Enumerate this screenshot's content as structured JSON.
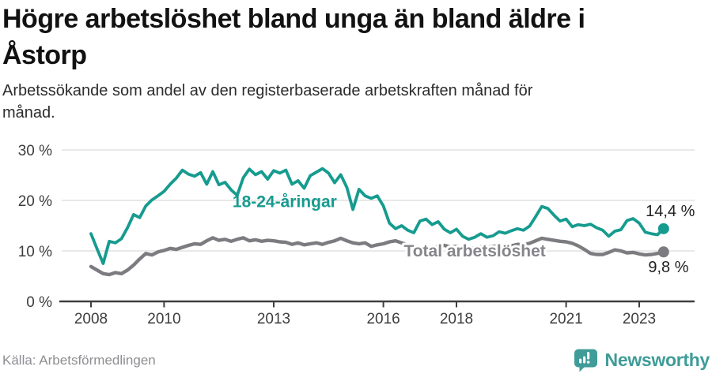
{
  "header": {
    "title_lines": [
      "Högre arbetslöshet bland unga än bland äldre i",
      "Åstorp"
    ],
    "subtitle_lines": [
      "Arbetssökande som andel av den registerbaserade arbetskraften månad för",
      "månad."
    ]
  },
  "footer": {
    "source": "Källa: Arbetsförmedlingen",
    "brand": "Newsworthy",
    "brand_color": "#3f9c98",
    "brand_icon": "bar-chart-speech-bubble"
  },
  "chart_data": {
    "type": "line",
    "title": "Högre arbetslöshet bland unga än bland äldre i Åstorp",
    "subtitle": "Arbetssökande som andel av den registerbaserade arbetskraften månad för månad.",
    "grid": "horizontal",
    "legend_position": "inline-labels",
    "sampling": "bimonthly estimates read from chart",
    "x_start": 2008.0,
    "x_step_years": 0.1666667,
    "xlim": [
      2007.1,
      2024.5
    ],
    "ylim": [
      0,
      31
    ],
    "x_ticks": [
      {
        "year": 2008,
        "label": "2008"
      },
      {
        "year": 2010,
        "label": "2010"
      },
      {
        "year": 2013,
        "label": "2013"
      },
      {
        "year": 2016,
        "label": "2016"
      },
      {
        "year": 2018,
        "label": "2018"
      },
      {
        "year": 2021,
        "label": "2021"
      },
      {
        "year": 2023,
        "label": "2023"
      }
    ],
    "y_ticks": [
      {
        "value": 0,
        "label": "0 %"
      },
      {
        "value": 10,
        "label": "10 %"
      },
      {
        "value": 20,
        "label": "20 %"
      },
      {
        "value": 30,
        "label": "30 %"
      }
    ],
    "series": [
      {
        "id": "youth",
        "name": "18-24-åringar",
        "color": "#169b8f",
        "width": 3.8,
        "end_value_label": "14,4 %",
        "values": [
          13.4,
          10.4,
          7.5,
          11.9,
          11.6,
          12.4,
          14.6,
          17.2,
          16.6,
          18.9,
          20.1,
          20.9,
          21.8,
          23.2,
          24.4,
          26.0,
          25.2,
          24.8,
          25.5,
          23.2,
          25.7,
          23.1,
          23.6,
          22.1,
          21.0,
          24.5,
          26.2,
          25.1,
          25.7,
          24.2,
          25.9,
          25.4,
          26.0,
          23.2,
          23.9,
          22.4,
          24.9,
          25.6,
          26.3,
          25.4,
          23.5,
          25.1,
          22.6,
          18.2,
          22.2,
          20.9,
          20.4,
          20.9,
          18.9,
          15.5,
          14.4,
          15.0,
          14.1,
          13.6,
          15.9,
          16.3,
          15.2,
          15.8,
          14.3,
          13.6,
          14.3,
          12.9,
          12.3,
          12.7,
          13.4,
          12.7,
          13.0,
          13.8,
          13.5,
          14.0,
          14.4,
          14.1,
          14.9,
          16.8,
          18.8,
          18.4,
          17.1,
          15.9,
          16.3,
          14.8,
          15.2,
          15.0,
          15.3,
          14.6,
          14.1,
          12.9,
          13.9,
          14.2,
          16.0,
          16.4,
          15.5,
          13.7,
          13.4,
          13.2,
          14.4
        ]
      },
      {
        "id": "total",
        "name": "Total arbetslöshet",
        "color": "#7c7c80",
        "width": 4.4,
        "end_value_label": "9,8 %",
        "values": [
          6.9,
          6.2,
          5.5,
          5.3,
          5.7,
          5.5,
          6.2,
          7.2,
          8.4,
          9.5,
          9.2,
          9.8,
          10.1,
          10.5,
          10.3,
          10.7,
          11.1,
          11.4,
          11.3,
          12.0,
          12.6,
          12.1,
          12.3,
          11.9,
          12.3,
          12.6,
          12.0,
          12.2,
          11.9,
          12.1,
          12.0,
          11.8,
          11.7,
          11.3,
          11.6,
          11.2,
          11.4,
          11.6,
          11.3,
          11.7,
          12.0,
          12.5,
          12.0,
          11.6,
          11.4,
          11.6,
          10.9,
          11.2,
          11.4,
          11.8,
          12.0,
          11.6,
          11.2,
          10.9,
          10.7,
          10.5,
          10.6,
          10.9,
          11.1,
          10.8,
          10.9,
          10.7,
          10.5,
          10.6,
          10.8,
          10.7,
          10.9,
          11.0,
          11.2,
          11.0,
          11.3,
          11.2,
          11.5,
          12.0,
          12.5,
          12.3,
          12.1,
          11.9,
          11.8,
          11.5,
          11.0,
          10.3,
          9.5,
          9.3,
          9.3,
          9.7,
          10.2,
          10.0,
          9.6,
          9.7,
          9.4,
          9.2,
          9.3,
          9.5,
          9.8
        ]
      }
    ],
    "series_labels": [
      {
        "text": "18-24-åringar",
        "x": 2013.3,
        "y": 19.8,
        "color": "#169b8f",
        "halo": false
      },
      {
        "text": "Total arbetslöshet",
        "x": 2018.5,
        "y": 10.0,
        "color": "#85858a",
        "halo": true
      }
    ],
    "annotations": [
      {
        "text": "14,4 %",
        "x": 2023.85,
        "y": 18.0
      },
      {
        "text": "9,8 %",
        "x": 2023.8,
        "y": 6.9
      }
    ]
  }
}
